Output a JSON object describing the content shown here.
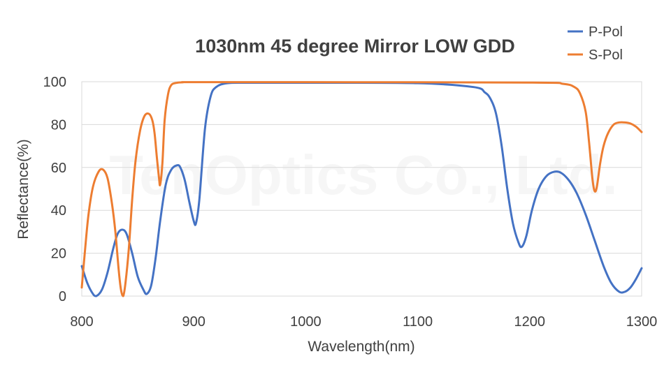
{
  "chart_data": {
    "type": "line",
    "title": "1030nm 45 degree Mirror LOW GDD",
    "xlabel": "Wavelength(nm)",
    "ylabel": "Reflectance(%)",
    "xlim": [
      800,
      1300
    ],
    "ylim": [
      0,
      100
    ],
    "xticks": [
      800,
      900,
      1000,
      1100,
      1200,
      1300
    ],
    "yticks": [
      0,
      20,
      40,
      60,
      80,
      100
    ],
    "grid": "horizontal",
    "legend": "top-right",
    "watermark": "TenOptics Co., Ltd.",
    "series": [
      {
        "name": "P-Pol",
        "color": "#4472c4",
        "x": [
          800,
          805,
          810,
          813,
          818,
          823,
          828,
          832,
          836,
          840,
          845,
          850,
          855,
          858,
          862,
          866,
          870,
          875,
          880,
          885,
          888,
          892,
          896,
          900,
          902,
          905,
          910,
          915,
          920,
          930,
          950,
          1000,
          1100,
          1150,
          1160,
          1165,
          1170,
          1175,
          1180,
          1185,
          1190,
          1193,
          1197,
          1202,
          1208,
          1215,
          1222,
          1228,
          1235,
          1242,
          1250,
          1258,
          1266,
          1273,
          1280,
          1285,
          1290,
          1295,
          1300
        ],
        "y": [
          14,
          6,
          1,
          0,
          3,
          11,
          22,
          29,
          31,
          29,
          20,
          9,
          3,
          1,
          5,
          18,
          35,
          52,
          59,
          61,
          60,
          54,
          44,
          35,
          34,
          45,
          78,
          93,
          97.5,
          99.3,
          99.5,
          99.5,
          99.3,
          97.5,
          95,
          92,
          85,
          70,
          50,
          34,
          25,
          23,
          28,
          40,
          50,
          56,
          58,
          57.5,
          54,
          48,
          38,
          26,
          14,
          6,
          2,
          2,
          4,
          8,
          13
        ]
      },
      {
        "name": "S-Pol",
        "color": "#ed7d31",
        "x": [
          800,
          803,
          806,
          810,
          815,
          819,
          823,
          827,
          830,
          833,
          835,
          837,
          839,
          842,
          845,
          848,
          852,
          856,
          860,
          863,
          865,
          867,
          869,
          870,
          872,
          874,
          877,
          880,
          885,
          890,
          900,
          1000,
          1200,
          1230,
          1240,
          1245,
          1250,
          1253,
          1256,
          1258,
          1260,
          1263,
          1266,
          1270,
          1275,
          1280,
          1285,
          1290,
          1295,
          1300
        ],
        "y": [
          4,
          22,
          38,
          51,
          58,
          59,
          55,
          43,
          30,
          12,
          3,
          0,
          6,
          22,
          45,
          63,
          77,
          84,
          85,
          82,
          76,
          65,
          55,
          52,
          62,
          82,
          94,
          98.5,
          99.5,
          99.7,
          99.8,
          99.8,
          99.6,
          99,
          97.5,
          94.5,
          86,
          72,
          55,
          49,
          51,
          62,
          70,
          76,
          80,
          81,
          81,
          80.5,
          79,
          76.5
        ]
      }
    ]
  }
}
